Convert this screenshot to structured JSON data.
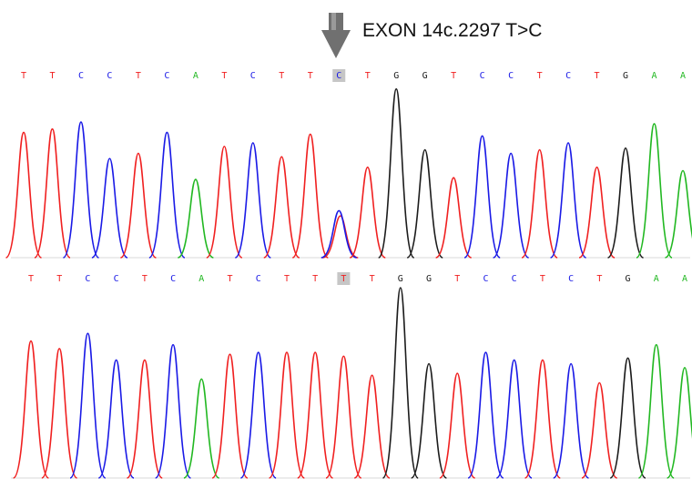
{
  "annotation": {
    "label": "EXON 14c.2297 T>C",
    "arrow_icon": "down-arrow-icon"
  },
  "colors": {
    "A": "#22b822",
    "C": "#1a1ae6",
    "G": "#1c1c1c",
    "T": "#f02020",
    "highlight": "#c6c6c6",
    "arrow": "#707070"
  },
  "tracks": [
    {
      "id": "variant",
      "bases": [
        "T",
        "T",
        "C",
        "C",
        "T",
        "C",
        "A",
        "T",
        "C",
        "T",
        "T",
        "C",
        "T",
        "G",
        "G",
        "T",
        "C",
        "C",
        "T",
        "C",
        "T",
        "G",
        "A",
        "A"
      ],
      "highlight_index": 11,
      "peaks": [
        {
          "base": "T",
          "height": 0.72
        },
        {
          "base": "T",
          "height": 0.74
        },
        {
          "base": "C",
          "height": 0.78
        },
        {
          "base": "C",
          "height": 0.57
        },
        {
          "base": "T",
          "height": 0.6
        },
        {
          "base": "C",
          "height": 0.72
        },
        {
          "base": "A",
          "height": 0.45
        },
        {
          "base": "T",
          "height": 0.64
        },
        {
          "base": "C",
          "height": 0.66
        },
        {
          "base": "T",
          "height": 0.58
        },
        {
          "base": "T",
          "height": 0.71
        },
        {
          "base": "C",
          "height": 0.27,
          "secondary": {
            "base": "T",
            "height": 0.24
          }
        },
        {
          "base": "T",
          "height": 0.52
        },
        {
          "base": "G",
          "height": 0.97
        },
        {
          "base": "G",
          "height": 0.62
        },
        {
          "base": "T",
          "height": 0.46
        },
        {
          "base": "C",
          "height": 0.7
        },
        {
          "base": "C",
          "height": 0.6
        },
        {
          "base": "T",
          "height": 0.62
        },
        {
          "base": "C",
          "height": 0.66
        },
        {
          "base": "T",
          "height": 0.52
        },
        {
          "base": "G",
          "height": 0.63
        },
        {
          "base": "A",
          "height": 0.77
        },
        {
          "base": "A",
          "height": 0.5
        }
      ]
    },
    {
      "id": "reference",
      "bases": [
        "T",
        "T",
        "C",
        "C",
        "T",
        "C",
        "A",
        "T",
        "C",
        "T",
        "T",
        "T",
        "T",
        "G",
        "G",
        "T",
        "C",
        "C",
        "T",
        "C",
        "T",
        "G",
        "A",
        "A"
      ],
      "highlight_index": 11,
      "peaks": [
        {
          "base": "T",
          "height": 0.72
        },
        {
          "base": "T",
          "height": 0.68
        },
        {
          "base": "C",
          "height": 0.76
        },
        {
          "base": "C",
          "height": 0.62
        },
        {
          "base": "T",
          "height": 0.62
        },
        {
          "base": "C",
          "height": 0.7
        },
        {
          "base": "A",
          "height": 0.52
        },
        {
          "base": "T",
          "height": 0.65
        },
        {
          "base": "C",
          "height": 0.66
        },
        {
          "base": "T",
          "height": 0.66
        },
        {
          "base": "T",
          "height": 0.66
        },
        {
          "base": "T",
          "height": 0.64
        },
        {
          "base": "T",
          "height": 0.54
        },
        {
          "base": "G",
          "height": 1.0
        },
        {
          "base": "G",
          "height": 0.6
        },
        {
          "base": "T",
          "height": 0.55
        },
        {
          "base": "C",
          "height": 0.66
        },
        {
          "base": "C",
          "height": 0.62
        },
        {
          "base": "T",
          "height": 0.62
        },
        {
          "base": "C",
          "height": 0.6
        },
        {
          "base": "T",
          "height": 0.5
        },
        {
          "base": "G",
          "height": 0.63
        },
        {
          "base": "A",
          "height": 0.7
        },
        {
          "base": "A",
          "height": 0.58
        }
      ]
    }
  ]
}
